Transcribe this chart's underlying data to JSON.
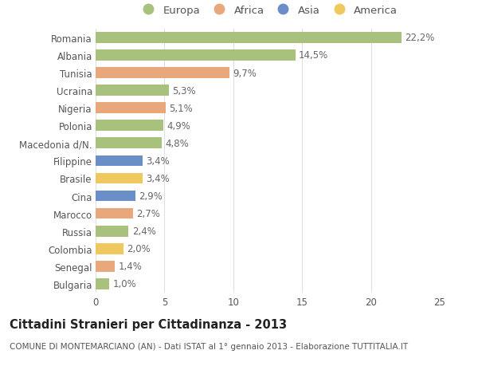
{
  "countries": [
    "Romania",
    "Albania",
    "Tunisia",
    "Ucraina",
    "Nigeria",
    "Polonia",
    "Macedonia d/N.",
    "Filippine",
    "Brasile",
    "Cina",
    "Marocco",
    "Russia",
    "Colombia",
    "Senegal",
    "Bulgaria"
  ],
  "values": [
    22.2,
    14.5,
    9.7,
    5.3,
    5.1,
    4.9,
    4.8,
    3.4,
    3.4,
    2.9,
    2.7,
    2.4,
    2.0,
    1.4,
    1.0
  ],
  "labels": [
    "22,2%",
    "14,5%",
    "9,7%",
    "5,3%",
    "5,1%",
    "4,9%",
    "4,8%",
    "3,4%",
    "3,4%",
    "2,9%",
    "2,7%",
    "2,4%",
    "2,0%",
    "1,4%",
    "1,0%"
  ],
  "continents": [
    "Europa",
    "Europa",
    "Africa",
    "Europa",
    "Africa",
    "Europa",
    "Europa",
    "Asia",
    "America",
    "Asia",
    "Africa",
    "Europa",
    "America",
    "Africa",
    "Europa"
  ],
  "continent_colors": {
    "Europa": "#a8c17c",
    "Africa": "#e8a87c",
    "Asia": "#6a8fc8",
    "America": "#f0c860"
  },
  "legend_order": [
    "Europa",
    "Africa",
    "Asia",
    "America"
  ],
  "title": "Cittadini Stranieri per Cittadinanza - 2013",
  "subtitle": "COMUNE DI MONTEMARCIANO (AN) - Dati ISTAT al 1° gennaio 2013 - Elaborazione TUTTITALIA.IT",
  "xlim": [
    0,
    25
  ],
  "xticks": [
    0,
    5,
    10,
    15,
    20,
    25
  ],
  "background_color": "#ffffff",
  "grid_color": "#e0e0e0",
  "bar_height": 0.62,
  "label_fontsize": 8.5,
  "title_fontsize": 10.5,
  "subtitle_fontsize": 7.5,
  "tick_fontsize": 8.5,
  "legend_fontsize": 9.5
}
